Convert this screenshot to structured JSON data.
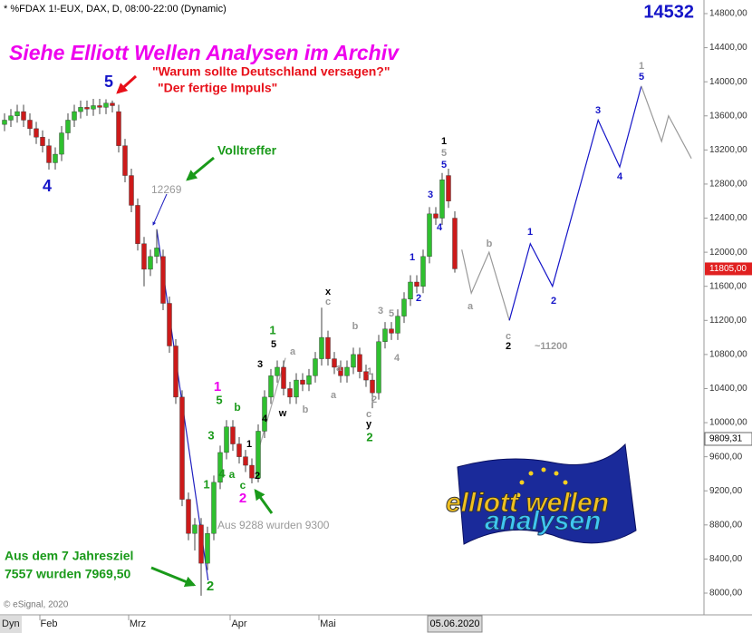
{
  "chart_data": {
    "type": "candlestick",
    "header": "* %FDAX 1!-EUX, DAX, D, 08:00-22:00 (Dynamic)",
    "title": "Siehe Elliott Wellen Analysen im Archiv",
    "big_price": 14532,
    "ylim": [
      8000,
      14800
    ],
    "yticks": [
      {
        "value": 8000,
        "label": "8000,00"
      },
      {
        "value": 8400,
        "label": "8400,00"
      },
      {
        "value": 8800,
        "label": "8800,00"
      },
      {
        "value": 9200,
        "label": "9200,00"
      },
      {
        "value": 9600,
        "label": "9600,00"
      },
      {
        "value": 10000,
        "label": "10000,00"
      },
      {
        "value": 10400,
        "label": "10400,00"
      },
      {
        "value": 10800,
        "label": "10800,00"
      },
      {
        "value": 11200,
        "label": "11200,00"
      },
      {
        "value": 11600,
        "label": "11600,00"
      },
      {
        "value": 12000,
        "label": "12000,00"
      },
      {
        "value": 12400,
        "label": "12400,00"
      },
      {
        "value": 12800,
        "label": "12800,00"
      },
      {
        "value": 13200,
        "label": "13200,00"
      },
      {
        "value": 13600,
        "label": "13600,00"
      },
      {
        "value": 14000,
        "label": "14000,00"
      },
      {
        "value": 14400,
        "label": "14400,00"
      },
      {
        "value": 14800,
        "label": "14800,00"
      }
    ],
    "xticks": [
      {
        "value": 7,
        "label": "Feb"
      },
      {
        "value": 21,
        "label": "Mrz"
      },
      {
        "value": 37,
        "label": "Apr"
      },
      {
        "value": 51,
        "label": "Mai"
      }
    ],
    "x_corner": "Dyn",
    "x_cursor": {
      "value": 71,
      "label": "05.06.2020"
    },
    "last_price": {
      "value": 11805,
      "label": "11805,00",
      "color": "#e02020"
    },
    "other_price": {
      "value": 9809.31,
      "label": "9809,31"
    },
    "up_color": "#2fc02f",
    "down_color": "#cc1a1a",
    "open": [
      13500,
      13550,
      13600,
      13650,
      13550,
      13450,
      13350,
      13250,
      13050,
      13150,
      13400,
      13550,
      13650,
      13700,
      13680,
      13720,
      13700,
      13750,
      13650,
      13250,
      12900,
      12550,
      12100,
      11800,
      11950,
      11950,
      11400,
      10900,
      10300,
      9100,
      8700,
      8800,
      8350,
      8700,
      9300,
      9650,
      9950,
      9750,
      9600,
      9500,
      9350,
      9900,
      10300,
      10550,
      10650,
      10400,
      10300,
      10500,
      10450,
      10550,
      10750,
      11000,
      10750,
      10650,
      10550,
      10650,
      10800,
      10600,
      10500,
      10350,
      10950,
      11100,
      11050,
      11250,
      11450,
      11650,
      11600,
      11950,
      12450,
      12400,
      12900,
      12400
    ],
    "high": [
      13630,
      13680,
      13730,
      13730,
      13630,
      13530,
      13430,
      13330,
      13230,
      13480,
      13630,
      13730,
      13780,
      13780,
      13800,
      13800,
      13795,
      13780,
      13730,
      13330,
      12980,
      12630,
      12180,
      12030,
      12269,
      12030,
      11480,
      10980,
      10380,
      9180,
      8880,
      8880,
      8780,
      9380,
      9730,
      10030,
      10030,
      9830,
      9680,
      9580,
      9980,
      10380,
      10630,
      10730,
      10730,
      10480,
      10580,
      10580,
      10630,
      10830,
      11350,
      11080,
      10830,
      10730,
      10730,
      10880,
      10880,
      10680,
      10580,
      11030,
      11180,
      11180,
      11330,
      11530,
      11730,
      11730,
      12030,
      12530,
      12530,
      12930,
      12980,
      12480
    ],
    "low": [
      13420,
      13470,
      13520,
      13470,
      13370,
      13270,
      13170,
      12970,
      12970,
      13070,
      13320,
      13470,
      13570,
      13600,
      13600,
      13620,
      13620,
      13640,
      13170,
      12820,
      12470,
      12020,
      11600,
      11720,
      11870,
      11320,
      10820,
      10220,
      9020,
      8620,
      8500,
      7969.5,
      8270,
      8620,
      9220,
      9570,
      9670,
      9520,
      9420,
      9288,
      9300,
      9820,
      10220,
      10470,
      10320,
      10220,
      10220,
      10370,
      10370,
      10470,
      10670,
      10670,
      10570,
      10470,
      10470,
      10570,
      10520,
      10420,
      10170,
      10270,
      10870,
      10970,
      10970,
      11170,
      11370,
      11520,
      11520,
      11870,
      12320,
      12320,
      12520,
      11760
    ],
    "close": [
      13550,
      13600,
      13650,
      13550,
      13450,
      13350,
      13250,
      13050,
      13150,
      13400,
      13550,
      13650,
      13700,
      13680,
      13720,
      13700,
      13750,
      13720,
      13250,
      12900,
      12550,
      12100,
      11800,
      11950,
      12050,
      11400,
      10900,
      10300,
      9100,
      8700,
      8800,
      8350,
      8700,
      9300,
      9650,
      9950,
      9750,
      9600,
      9500,
      9350,
      9900,
      10300,
      10550,
      10650,
      10400,
      10300,
      10500,
      10450,
      10550,
      10750,
      11000,
      10750,
      10650,
      10550,
      10650,
      10800,
      10600,
      10500,
      10350,
      10950,
      11100,
      11050,
      11250,
      11450,
      11650,
      11600,
      11950,
      12450,
      12400,
      12850,
      12600,
      11805
    ],
    "overlays": [
      {
        "color": "#2020c0",
        "x": [
          24,
          32.1
        ],
        "values": [
          12269,
          8150
        ]
      },
      {
        "color": "#aaaaaa",
        "x": [
          39.7,
          44.3
        ],
        "values": [
          9590,
          10760
        ]
      },
      {
        "color": "#999999",
        "x": [
          72.1,
          73.6,
          76.4,
          79.6
        ],
        "values": [
          12030,
          11520,
          12000,
          11200
        ]
      },
      {
        "color": "#1515c8",
        "x": [
          79.6,
          82.9,
          86.4,
          93.6,
          97,
          100.4
        ],
        "values": [
          11200,
          12100,
          11600,
          13550,
          13000,
          13950
        ]
      },
      {
        "color": "#999999",
        "x": [
          100.4,
          103.6,
          104.7,
          108.3
        ],
        "values": [
          13950,
          13300,
          13600,
          13100
        ]
      }
    ],
    "wave_labels": [
      {
        "text": "5",
        "color": "#1515c8"
      },
      {
        "text": "4",
        "color": "#1515c8"
      },
      {
        "text": "1",
        "color": "#ee00ee"
      },
      {
        "text": "5",
        "color": "#1a9a1a"
      },
      {
        "text": "3",
        "color": "#1a9a1a"
      },
      {
        "text": "b",
        "color": "#1a9a1a"
      },
      {
        "text": "4",
        "color": "#1a9a1a"
      },
      {
        "text": "a",
        "color": "#1a9a1a"
      },
      {
        "text": "1",
        "color": "#1a9a1a"
      },
      {
        "text": "c",
        "color": "#1a9a1a"
      },
      {
        "text": "2",
        "color": "#ee00ee"
      },
      {
        "text": "1",
        "color": "#000000"
      },
      {
        "text": "2",
        "color": "#000000"
      },
      {
        "text": "3",
        "color": "#000000"
      },
      {
        "text": "4",
        "color": "#000000"
      },
      {
        "text": "w",
        "color": "#000000"
      },
      {
        "text": "1",
        "color": "#1a9a1a"
      },
      {
        "text": "5",
        "color": "#000000"
      },
      {
        "text": "a",
        "color": "#999999"
      },
      {
        "text": "b",
        "color": "#999999"
      },
      {
        "text": "a",
        "color": "#999999"
      },
      {
        "text": "x",
        "color": "#000000"
      },
      {
        "text": "c",
        "color": "#999999"
      },
      {
        "text": "b",
        "color": "#999999"
      },
      {
        "text": "a",
        "color": "#999999"
      },
      {
        "text": "1",
        "color": "#999999"
      },
      {
        "text": "2",
        "color": "#999999"
      },
      {
        "text": "c",
        "color": "#999999"
      },
      {
        "text": "y",
        "color": "#000000"
      },
      {
        "text": "2",
        "color": "#1a9a1a"
      },
      {
        "text": "3",
        "color": "#999999"
      },
      {
        "text": "5",
        "color": "#999999"
      },
      {
        "text": "4",
        "color": "#999999"
      },
      {
        "text": "1",
        "color": "#1515c8"
      },
      {
        "text": "2",
        "color": "#1515c8"
      },
      {
        "text": "3",
        "color": "#1515c8"
      },
      {
        "text": "4",
        "color": "#1515c8"
      },
      {
        "text": "1",
        "color": "#000000"
      },
      {
        "text": "5",
        "color": "#999999"
      },
      {
        "text": "5",
        "color": "#1515c8"
      },
      {
        "text": "a",
        "color": "#999999"
      },
      {
        "text": "b",
        "color": "#999999"
      },
      {
        "text": "c",
        "color": "#999999"
      },
      {
        "text": "2",
        "color": "#000000"
      },
      {
        "text": "~11200",
        "color": "#999999"
      },
      {
        "text": "1",
        "color": "#1515c8"
      },
      {
        "text": "2",
        "color": "#1515c8"
      },
      {
        "text": "3",
        "color": "#1515c8"
      },
      {
        "text": "4",
        "color": "#1515c8"
      },
      {
        "text": "1",
        "color": "#999999"
      },
      {
        "text": "5",
        "color": "#1515c8"
      },
      {
        "text": "2",
        "color": "#1a9a1a"
      }
    ],
    "annotations": [
      {
        "text": "\"Warum sollte Deutschland versagen?\"",
        "color": "#e8101a"
      },
      {
        "text": "\"Der fertige Impuls\"",
        "color": "#e8101a"
      },
      {
        "text": "Volltreffer",
        "color": "#1a9a1a"
      },
      {
        "text": "12269",
        "color": "#999999"
      },
      {
        "text": "Aus 9288 wurden 9300",
        "color": "#999999"
      },
      {
        "text": "Aus dem 7 Jahresziel",
        "color": "#1a9a1a"
      },
      {
        "text": "7557 wurden 7969,50",
        "color": "#1a9a1a"
      },
      {
        "text": "© eSignal, 2020",
        "color": "#777777"
      }
    ],
    "logo": {
      "line1": "elliott wellen",
      "line2": "analysen"
    }
  }
}
